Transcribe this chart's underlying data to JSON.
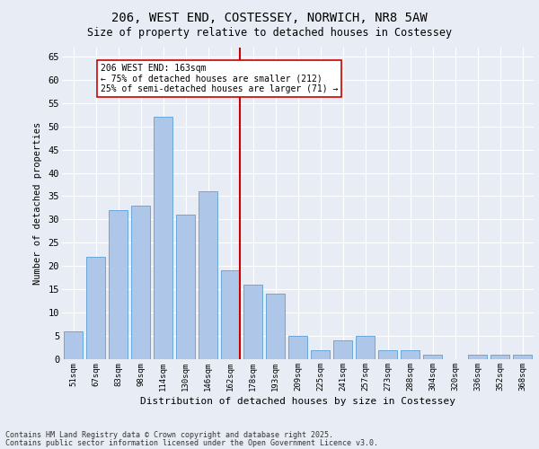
{
  "title_line1": "206, WEST END, COSTESSEY, NORWICH, NR8 5AW",
  "title_line2": "Size of property relative to detached houses in Costessey",
  "xlabel": "Distribution of detached houses by size in Costessey",
  "ylabel": "Number of detached properties",
  "categories": [
    "51sqm",
    "67sqm",
    "83sqm",
    "98sqm",
    "114sqm",
    "130sqm",
    "146sqm",
    "162sqm",
    "178sqm",
    "193sqm",
    "209sqm",
    "225sqm",
    "241sqm",
    "257sqm",
    "273sqm",
    "288sqm",
    "304sqm",
    "320sqm",
    "336sqm",
    "352sqm",
    "368sqm"
  ],
  "values": [
    6,
    22,
    32,
    33,
    52,
    31,
    36,
    19,
    16,
    14,
    5,
    2,
    4,
    5,
    2,
    2,
    1,
    0,
    1,
    1,
    1
  ],
  "bar_color": "#aec6e8",
  "bar_edge_color": "#5a9fd4",
  "vline_index": 7,
  "vline_color": "#cc0000",
  "annotation_text": "206 WEST END: 163sqm\n← 75% of detached houses are smaller (212)\n25% of semi-detached houses are larger (71) →",
  "annotation_box_color": "#ffffff",
  "annotation_box_edge": "#cc0000",
  "ylim": [
    0,
    67
  ],
  "yticks": [
    0,
    5,
    10,
    15,
    20,
    25,
    30,
    35,
    40,
    45,
    50,
    55,
    60,
    65
  ],
  "background_color": "#e8edf5",
  "fig_background": "#e8edf5",
  "footer_line1": "Contains HM Land Registry data © Crown copyright and database right 2025.",
  "footer_line2": "Contains public sector information licensed under the Open Government Licence v3.0."
}
